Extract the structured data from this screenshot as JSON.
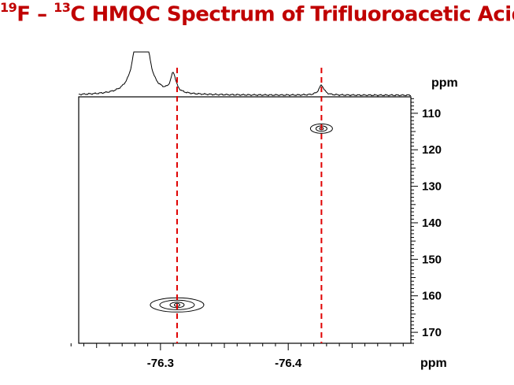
{
  "title": {
    "sup1": "19",
    "part1": "F – ",
    "sup2": "13",
    "part2": "C HMQC Spectrum of Trifluoroacetic Acid"
  },
  "colors": {
    "title": "#c00000",
    "guide_line": "#e00000",
    "contour": "#000000",
    "frame": "#000000"
  },
  "chart_data": {
    "type": "contour",
    "x_axis": {
      "label": "ppm",
      "range": [
        -76.236,
        -76.496
      ],
      "reversed": true,
      "tick_labels": [
        "-76.3",
        "-76.4"
      ],
      "tick_values": [
        -76.3,
        -76.4
      ]
    },
    "y_axis": {
      "label": "ppm",
      "range": [
        105.5,
        173
      ],
      "reversed": true,
      "tick_labels": [
        "110",
        "120",
        "130",
        "140",
        "150",
        "160",
        "170"
      ],
      "tick_values": [
        110,
        120,
        130,
        140,
        150,
        160,
        170
      ]
    },
    "peaks": [
      {
        "f19_ppm": -76.313,
        "c13_ppm": 162.5,
        "contour_levels": 3
      },
      {
        "f19_ppm": -76.426,
        "c13_ppm": 114.2,
        "contour_levels": 2
      }
    ],
    "projection_1d": {
      "axis": "x",
      "peaks": [
        {
          "f19_ppm": -76.31,
          "relative_height": 0.55
        },
        {
          "f19_ppm": -76.426,
          "relative_height": 0.28
        }
      ],
      "offscale_peak_ppm": -76.285
    },
    "guide_lines": [
      -76.313,
      -76.426
    ]
  }
}
